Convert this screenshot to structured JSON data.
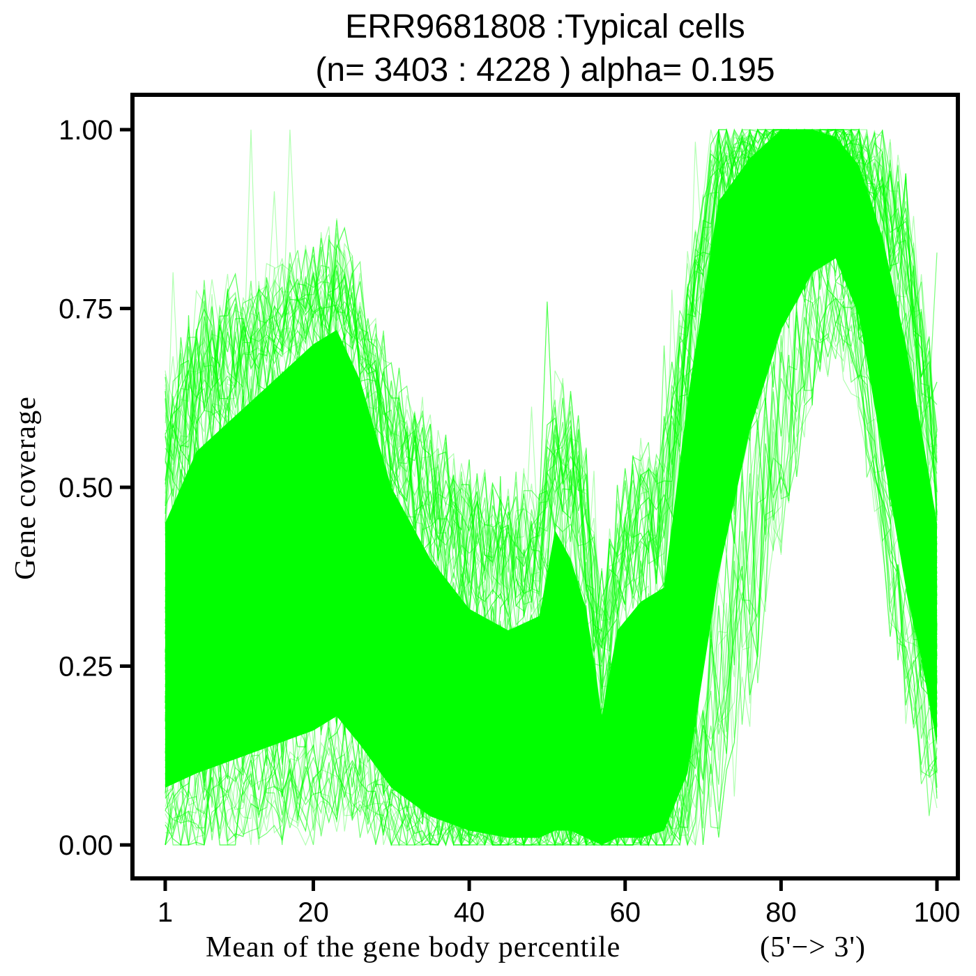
{
  "chart_data": {
    "type": "line",
    "title": "ERR9681808 :Typical cells",
    "subtitle": "(n= 3403 : 4228 ) alpha= 0.195",
    "xlabel": "Mean of the gene body percentile",
    "xlabel_suffix": "(5'−> 3')",
    "ylabel": "Gene coverage",
    "xlim": [
      1,
      100
    ],
    "ylim": [
      0,
      1
    ],
    "x_ticks": [
      "1",
      "20",
      "40",
      "60",
      "80",
      "100"
    ],
    "y_ticks": [
      "0.00",
      "0.25",
      "0.50",
      "0.75",
      "1.00"
    ],
    "line_color": "#00ff00",
    "line_alpha": 0.195,
    "grid": false,
    "legend": "none",
    "envelope": {
      "x": [
        1,
        5,
        10,
        15,
        20,
        23,
        26,
        30,
        35,
        40,
        45,
        49,
        51,
        53,
        55,
        57,
        59,
        62,
        65,
        68,
        72,
        76,
        80,
        84,
        87,
        90,
        93,
        96,
        98,
        100
      ],
      "upper": [
        0.65,
        0.75,
        0.78,
        0.8,
        0.82,
        0.85,
        0.78,
        0.66,
        0.58,
        0.52,
        0.48,
        0.5,
        0.66,
        0.62,
        0.55,
        0.38,
        0.5,
        0.55,
        0.58,
        0.8,
        1.0,
        1.0,
        1.0,
        1.0,
        1.0,
        1.0,
        1.0,
        0.92,
        0.78,
        0.62
      ],
      "core_hi": [
        0.45,
        0.55,
        0.6,
        0.65,
        0.7,
        0.72,
        0.65,
        0.5,
        0.4,
        0.33,
        0.3,
        0.32,
        0.44,
        0.4,
        0.33,
        0.18,
        0.3,
        0.34,
        0.36,
        0.62,
        0.9,
        0.96,
        1.0,
        1.0,
        0.99,
        0.95,
        0.85,
        0.7,
        0.58,
        0.45
      ],
      "core_lo": [
        0.08,
        0.1,
        0.12,
        0.14,
        0.16,
        0.18,
        0.14,
        0.08,
        0.04,
        0.02,
        0.01,
        0.01,
        0.02,
        0.02,
        0.01,
        0.0,
        0.01,
        0.01,
        0.02,
        0.1,
        0.38,
        0.58,
        0.72,
        0.8,
        0.82,
        0.74,
        0.55,
        0.36,
        0.26,
        0.14
      ],
      "lower": [
        0.0,
        0.0,
        0.01,
        0.01,
        0.02,
        0.03,
        0.02,
        0.0,
        0.0,
        0.0,
        0.0,
        0.0,
        0.0,
        0.0,
        0.0,
        0.0,
        0.0,
        0.0,
        0.0,
        0.0,
        0.02,
        0.18,
        0.4,
        0.62,
        0.7,
        0.62,
        0.4,
        0.18,
        0.1,
        0.05
      ]
    }
  }
}
